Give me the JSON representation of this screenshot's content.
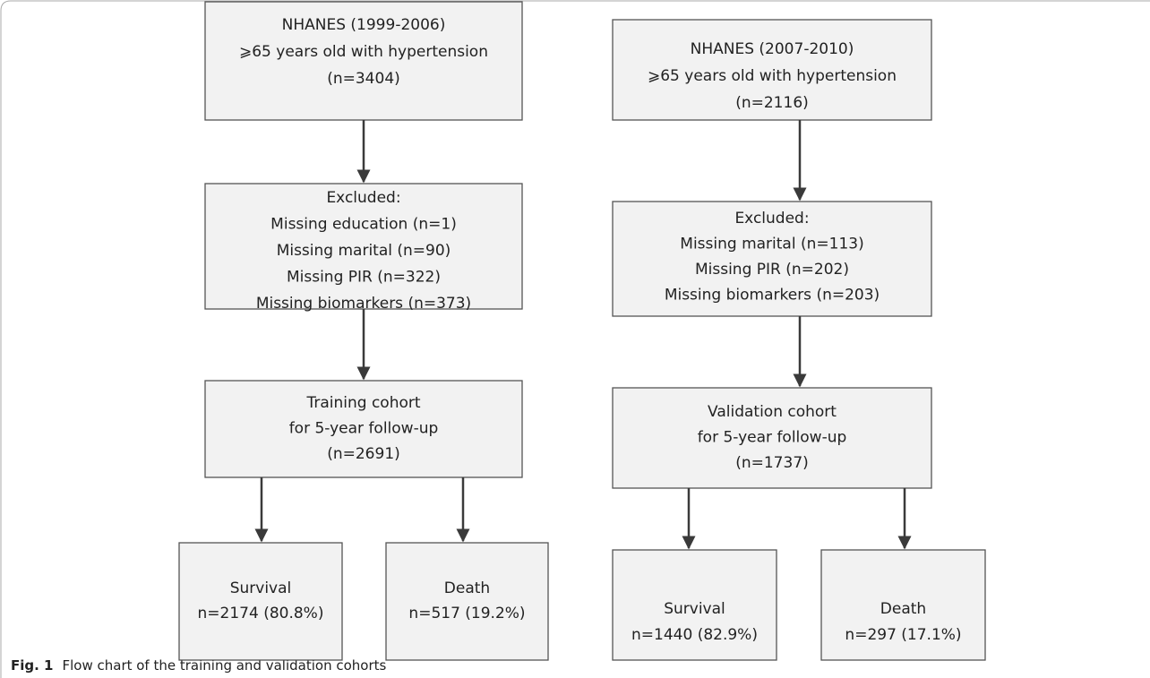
{
  "nodes": [
    {
      "lines": [
        "NHANES (1999-2006)",
        "⩾65 years old with hypertension",
        "(n=3404)"
      ]
    },
    {
      "lines": [
        "NHANES (2007-2010)",
        "⩾65 years old with hypertension",
        "(n=2116)"
      ]
    },
    {
      "lines": [
        "Excluded:",
        "Missing education (n=1)",
        "Missing marital (n=90)",
        "Missing PIR (n=322)",
        "Missing biomarkers (n=373)"
      ]
    },
    {
      "lines": [
        "Excluded:",
        "Missing marital (n=113)",
        "Missing PIR (n=202)",
        "Missing biomarkers (n=203)"
      ]
    },
    {
      "lines": [
        "Training cohort",
        "for 5-year follow-up",
        "(n=2691)"
      ]
    },
    {
      "lines": [
        "Validation cohort",
        "for 5-year follow-up",
        "(n=1737)"
      ]
    },
    {
      "lines": [
        "Survival",
        "n=2174 (80.8%)"
      ]
    },
    {
      "lines": [
        "Death",
        "n=517 (19.2%)"
      ]
    },
    {
      "lines": [
        "Survival",
        "n=1440 (82.9%)"
      ]
    },
    {
      "lines": [
        "Death",
        "n=297 (17.1%)"
      ]
    }
  ],
  "caption": {
    "label": "Fig. 1",
    "text": "Flow chart of the training and validation cohorts"
  }
}
